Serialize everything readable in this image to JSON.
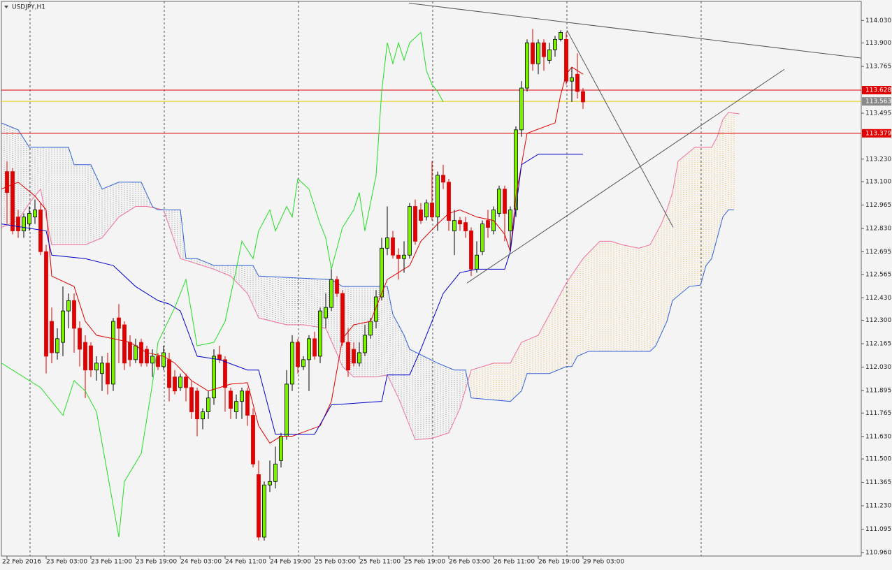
{
  "chart_data": {
    "type": "candlestick",
    "title": "USDJPY,H1",
    "categories": [
      "22 Feb 2016",
      null,
      null,
      null,
      null,
      null,
      null,
      "23 Feb 03:00",
      null,
      null,
      null,
      null,
      null,
      null,
      null,
      "23 Feb 11:00",
      null,
      null,
      null,
      null,
      null,
      null,
      null,
      "23 Feb 19:00",
      null,
      null,
      null,
      null,
      null,
      null,
      null,
      "24 Feb 03:00",
      null,
      null,
      null,
      null,
      null,
      null,
      null,
      "24 Feb 11:00",
      null,
      null,
      null,
      null,
      null,
      null,
      null,
      "24 Feb 19:00",
      null,
      null,
      null,
      null,
      null,
      null,
      null,
      "25 Feb 03:00",
      null,
      null,
      null,
      null,
      null,
      null,
      null,
      "25 Feb 11:00",
      null,
      null,
      null,
      null,
      null,
      null,
      null,
      "25 Feb 19:00",
      null,
      null,
      null,
      null,
      null,
      null,
      null,
      "26 Feb 03:00",
      null,
      null,
      null,
      null,
      null,
      null,
      null,
      "26 Feb 11:00",
      null,
      null,
      null,
      null,
      null,
      null,
      null,
      "26 Feb 19:00",
      null,
      null,
      null,
      null,
      null,
      null,
      null,
      "29 Feb 03:00"
    ],
    "open": [
      113.158,
      113.158,
      112.896,
      112.816,
      112.856,
      112.896,
      112.937,
      112.696,
      112.294,
      112.113,
      112.173,
      112.354,
      112.414,
      112.254,
      112.173,
      112.153,
      112.013,
      111.993,
      112.053,
      111.932,
      112.314,
      112.274,
      112.173,
      112.073,
      112.173,
      112.133,
      112.053,
      112.093,
      112.033,
      112.073,
      111.973,
      111.912,
      111.973,
      111.912,
      111.892,
      111.731,
      111.772,
      111.852,
      112.101,
      112.073,
      111.892,
      111.772,
      111.832,
      111.892,
      111.752,
      111.41,
      111.049,
      111.35,
      111.37,
      111.491,
      111.631,
      111.932,
      112.173,
      112.033,
      112.073,
      112.194,
      112.093,
      112.314,
      112.374,
      112.535,
      112.455,
      112.173,
      112.133,
      112.053,
      112.113,
      112.214,
      112.294,
      112.435,
      112.716,
      112.776,
      112.676,
      112.656,
      112.676,
      112.957,
      112.937,
      112.896,
      112.977,
      112.896,
      113.137,
      113.097,
      112.816,
      112.876,
      112.864,
      112.816,
      112.595,
      112.696,
      112.876,
      112.816,
      112.917,
      113.057,
      112.816,
      112.937,
      113.399,
      113.64,
      113.901,
      113.78,
      113.901,
      113.8,
      113.861,
      113.921,
      113.921,
      113.68,
      113.72,
      113.62
    ],
    "high": [
      113.218,
      113.178,
      112.937,
      112.917,
      112.957,
      112.997,
      112.977,
      112.736,
      112.374,
      112.254,
      112.495,
      112.455,
      112.455,
      112.294,
      112.214,
      112.173,
      112.093,
      112.093,
      112.113,
      112.314,
      112.394,
      112.294,
      112.214,
      112.194,
      112.194,
      112.153,
      112.133,
      112.113,
      112.153,
      112.113,
      112.013,
      111.993,
      111.993,
      111.952,
      111.912,
      111.792,
      111.892,
      112.133,
      112.153,
      112.093,
      111.912,
      111.872,
      111.912,
      111.912,
      111.792,
      111.491,
      111.37,
      111.491,
      111.571,
      111.651,
      112.013,
      112.214,
      112.194,
      112.093,
      112.214,
      112.234,
      112.374,
      112.455,
      112.595,
      112.555,
      112.475,
      112.254,
      112.173,
      112.173,
      112.274,
      112.314,
      112.475,
      112.776,
      112.957,
      112.816,
      112.716,
      112.756,
      112.977,
      112.997,
      112.977,
      112.997,
      113.218,
      113.158,
      113.198,
      113.117,
      112.937,
      112.896,
      112.896,
      112.836,
      112.756,
      112.876,
      112.937,
      112.957,
      113.077,
      113.077,
      112.957,
      113.419,
      113.68,
      113.921,
      113.981,
      113.921,
      113.921,
      113.901,
      113.941,
      113.973,
      113.961,
      113.76,
      113.841,
      113.64
    ],
    "low": [
      112.856,
      112.796,
      112.776,
      112.776,
      112.816,
      112.856,
      112.676,
      111.993,
      112.053,
      112.073,
      112.093,
      112.254,
      112.113,
      112.033,
      111.852,
      111.973,
      111.952,
      111.892,
      111.872,
      111.892,
      112.053,
      112.013,
      112.033,
      112.053,
      112.033,
      112.033,
      111.973,
      112.013,
      112.013,
      111.832,
      111.872,
      111.892,
      111.832,
      111.731,
      111.631,
      111.671,
      111.731,
      111.812,
      112.053,
      111.772,
      111.731,
      111.731,
      111.731,
      111.691,
      111.451,
      111.029,
      111.029,
      111.31,
      111.33,
      111.451,
      111.611,
      111.892,
      111.993,
      112.013,
      111.892,
      112.073,
      112.053,
      112.254,
      112.354,
      112.435,
      112.153,
      111.973,
      112.033,
      112.033,
      112.093,
      112.194,
      112.254,
      112.414,
      112.676,
      112.656,
      112.535,
      112.575,
      112.656,
      112.736,
      112.856,
      112.876,
      112.876,
      112.816,
      113.057,
      112.816,
      112.676,
      112.816,
      112.776,
      112.555,
      112.575,
      112.676,
      112.776,
      112.796,
      112.896,
      112.756,
      112.696,
      112.896,
      113.359,
      113.62,
      113.74,
      113.72,
      113.74,
      113.78,
      113.821,
      113.909,
      113.66,
      113.56,
      113.58,
      113.52
    ],
    "close": [
      113.037,
      112.816,
      112.816,
      112.896,
      112.917,
      112.937,
      112.696,
      112.093,
      112.113,
      112.194,
      112.354,
      112.414,
      112.254,
      112.133,
      112.013,
      112.013,
      112.053,
      112.053,
      111.932,
      112.294,
      112.254,
      112.053,
      112.073,
      112.153,
      112.053,
      112.053,
      112.093,
      112.033,
      112.113,
      111.912,
      111.892,
      111.973,
      111.912,
      111.772,
      111.731,
      111.772,
      111.852,
      112.093,
      112.073,
      111.912,
      111.792,
      111.832,
      111.892,
      111.752,
      111.471,
      111.049,
      111.35,
      111.37,
      111.471,
      111.631,
      111.932,
      112.173,
      112.033,
      112.073,
      112.194,
      112.093,
      112.354,
      112.374,
      112.535,
      112.455,
      112.173,
      112.013,
      112.053,
      112.113,
      112.214,
      112.294,
      112.435,
      112.716,
      112.776,
      112.676,
      112.656,
      112.676,
      112.957,
      112.756,
      112.876,
      112.977,
      112.896,
      113.137,
      113.097,
      112.876,
      112.876,
      112.856,
      112.816,
      112.595,
      112.676,
      112.856,
      112.836,
      112.937,
      113.057,
      112.917,
      112.937,
      113.399,
      113.64,
      113.901,
      113.78,
      113.901,
      113.821,
      113.861,
      113.921,
      113.961,
      113.68,
      113.7,
      113.62,
      113.56
    ],
    "up_color": "#7cf000",
    "down_color": "#e00000",
    "tenkan": {
      "color": "#dd0000",
      "x": [
        -1,
        2,
        5,
        7,
        8,
        12,
        14,
        16,
        19,
        22,
        25,
        28,
        30,
        33,
        36,
        40,
        43,
        45,
        47,
        49,
        51,
        56,
        58,
        60,
        62,
        65,
        67,
        68,
        72,
        74,
        77,
        79,
        81,
        84,
        87,
        89,
        90,
        91,
        93,
        98,
        99,
        100,
        101,
        103
      ],
      "values": [
        113.057,
        113.097,
        113.017,
        112.937,
        112.555,
        112.495,
        112.294,
        112.214,
        112.194,
        112.173,
        112.113,
        112.093,
        112.053,
        111.952,
        111.892,
        111.932,
        111.94,
        111.691,
        111.591,
        111.631,
        111.631,
        111.691,
        111.832,
        112.194,
        112.274,
        112.294,
        112.455,
        112.535,
        112.616,
        112.756,
        112.856,
        112.917,
        112.937,
        112.896,
        112.876,
        112.796,
        112.696,
        113.017,
        113.379,
        113.439,
        113.6,
        113.72,
        113.761,
        113.72
      ]
    },
    "kijun": {
      "color": "#0000c8",
      "x": [
        -1,
        7,
        8,
        14,
        19,
        23,
        27,
        29,
        31,
        34,
        38,
        43,
        45,
        48,
        55,
        58,
        67,
        68,
        72,
        74,
        78,
        81,
        84,
        89,
        90,
        92,
        95,
        103
      ],
      "values": [
        112.856,
        112.816,
        112.676,
        112.656,
        112.616,
        112.495,
        112.414,
        112.394,
        112.354,
        112.093,
        112.073,
        112.013,
        112.013,
        111.643,
        111.643,
        111.812,
        111.832,
        111.985,
        111.985,
        112.133,
        112.455,
        112.575,
        112.595,
        112.595,
        112.696,
        113.198,
        113.258,
        113.258
      ]
    },
    "span_a": {
      "color": "#f070a0",
      "x": [
        -1,
        2,
        4,
        6,
        8,
        14,
        17,
        20,
        23,
        25,
        28,
        31,
        33,
        37,
        40,
        43,
        45,
        50,
        53,
        57,
        60,
        62,
        66,
        68,
        70,
        73,
        76,
        79,
        81,
        83,
        87,
        90,
        92,
        95,
        97,
        100,
        103,
        106,
        108,
        110,
        113,
        115,
        117,
        118,
        119,
        120,
        123,
        126,
        127,
        128,
        129,
        131
      ],
      "values": [
        112.836,
        112.876,
        112.977,
        113.057,
        112.736,
        112.736,
        112.776,
        112.896,
        112.957,
        112.957,
        112.937,
        112.656,
        112.636,
        112.595,
        112.555,
        112.455,
        112.314,
        112.274,
        112.274,
        112.254,
        112.033,
        111.973,
        111.973,
        111.985,
        111.852,
        111.611,
        111.619,
        111.651,
        111.792,
        112.013,
        112.053,
        112.053,
        112.173,
        112.214,
        112.334,
        112.515,
        112.656,
        112.756,
        112.756,
        112.736,
        112.716,
        112.736,
        112.856,
        112.937,
        113.037,
        113.218,
        113.298,
        113.298,
        113.359,
        113.459,
        113.499,
        113.491
      ]
    },
    "span_b": {
      "color": "#3060d8",
      "x": [
        -1,
        2,
        4,
        11,
        12,
        15,
        17,
        20,
        24,
        26,
        27,
        31,
        32,
        34,
        37,
        44,
        45,
        58,
        60,
        68,
        69,
        71,
        72,
        77,
        80,
        82,
        83,
        90,
        92,
        93,
        97,
        100,
        101,
        102,
        104,
        115,
        116,
        118,
        119,
        122,
        124,
        125,
        126,
        127,
        128,
        129,
        130
      ],
      "values": [
        113.439,
        113.399,
        113.298,
        113.298,
        113.198,
        113.198,
        113.057,
        113.097,
        113.097,
        112.957,
        112.937,
        112.937,
        112.656,
        112.656,
        112.616,
        112.616,
        112.555,
        112.535,
        112.495,
        112.495,
        112.334,
        112.214,
        112.133,
        112.053,
        112.013,
        112.013,
        111.852,
        111.832,
        111.892,
        111.993,
        111.993,
        112.033,
        112.033,
        112.093,
        112.121,
        112.121,
        112.153,
        112.294,
        112.414,
        112.495,
        112.503,
        112.616,
        112.656,
        112.776,
        112.896,
        112.937,
        112.937
      ]
    },
    "chikou": {
      "color": "#22dd22",
      "x": [
        -1,
        6,
        10,
        12,
        14,
        16,
        20,
        21,
        24,
        26,
        27,
        30,
        32,
        34,
        37,
        39,
        41,
        42,
        44,
        45,
        47,
        48,
        50,
        51,
        52,
        54,
        56,
        57,
        58,
        60,
        62,
        63,
        64,
        66,
        67,
        68,
        69,
        70,
        71,
        72,
        74,
        75,
        76,
        77,
        78
      ],
      "values": [
        112.053,
        111.912,
        111.752,
        111.952,
        111.892,
        111.772,
        111.049,
        111.37,
        111.531,
        111.932,
        112.173,
        112.374,
        112.535,
        112.153,
        112.173,
        112.294,
        112.595,
        112.756,
        112.656,
        112.816,
        112.937,
        112.816,
        112.957,
        112.896,
        113.117,
        113.057,
        112.856,
        112.776,
        112.595,
        112.836,
        112.937,
        113.037,
        112.816,
        113.137,
        113.62,
        113.901,
        113.781,
        113.901,
        113.801,
        113.901,
        113.961,
        113.74,
        113.66,
        113.62,
        113.56
      ]
    },
    "cloud_up_color": "#f0b43c",
    "cloud_down_color": "#8c8c8c",
    "hlines": [
      {
        "value": 113.628,
        "color": "#e00000",
        "label_fill": "#e00000"
      },
      {
        "value": 113.563,
        "color": "#e8c800",
        "label_fill": "#8a8a8a"
      },
      {
        "value": 113.379,
        "color": "#e00000",
        "label_fill": "#e00000"
      }
    ],
    "trendlines": [
      {
        "x": [
          71.875,
          152.75
        ],
        "y": [
          114.13,
          113.813
        ]
      },
      {
        "x": [
          82.25,
          139
        ],
        "y": [
          112.515,
          113.748
        ]
      },
      {
        "x": [
          100.125,
          119.125
        ],
        "y": [
          113.973,
          112.836
        ]
      }
    ],
    "trendline_color": "#555555",
    "xgrid": [
      4.125,
      28.125,
      52.125,
      76.125,
      100.125,
      124.125
    ],
    "xlim": [
      -1.25,
      152.75
    ],
    "ylim": [
      110.94,
      114.14
    ],
    "yticks": [
      {
        "value": 114.03,
        "label": "114.030"
      },
      {
        "value": 113.9,
        "label": "113.900"
      },
      {
        "value": 113.765,
        "label": "113.765"
      },
      {
        "value": 113.495,
        "label": "113.495"
      },
      {
        "value": 113.23,
        "label": "113.230"
      },
      {
        "value": 113.1,
        "label": "113.100"
      },
      {
        "value": 112.965,
        "label": "112.965"
      },
      {
        "value": 112.83,
        "label": "112.830"
      },
      {
        "value": 112.695,
        "label": "112.695"
      },
      {
        "value": 112.565,
        "label": "112.565"
      },
      {
        "value": 112.43,
        "label": "112.430"
      },
      {
        "value": 112.3,
        "label": "112.300"
      },
      {
        "value": 112.165,
        "label": "112.165"
      },
      {
        "value": 112.03,
        "label": "112.030"
      },
      {
        "value": 111.895,
        "label": "111.895"
      },
      {
        "value": 111.765,
        "label": "111.765"
      },
      {
        "value": 111.63,
        "label": "111.630"
      },
      {
        "value": 111.5,
        "label": "111.500"
      },
      {
        "value": 111.365,
        "label": "111.365"
      },
      {
        "value": 111.23,
        "label": "111.230"
      },
      {
        "value": 111.095,
        "label": "111.095"
      },
      {
        "value": 110.96,
        "label": "110.960"
      }
    ]
  }
}
